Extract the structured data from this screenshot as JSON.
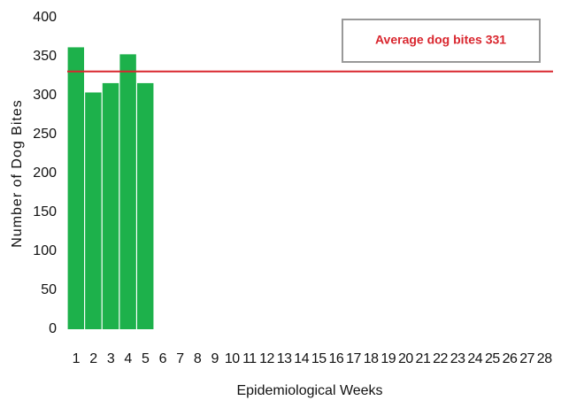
{
  "chart_data": {
    "type": "bar",
    "xlabel": "Epidemiological Weeks",
    "ylabel": "Number of Dog Bites",
    "categories": [
      "1",
      "2",
      "3",
      "4",
      "5",
      "6",
      "7",
      "8",
      "9",
      "10",
      "11",
      "12",
      "13",
      "14",
      "15",
      "16",
      "17",
      "18",
      "19",
      "20",
      "21",
      "22",
      "23",
      "24",
      "25",
      "26",
      "27",
      "28"
    ],
    "values": [
      362,
      304,
      316,
      353,
      316,
      null,
      null,
      null,
      null,
      null,
      null,
      null,
      null,
      null,
      null,
      null,
      null,
      null,
      null,
      null,
      null,
      null,
      null,
      null,
      null,
      null,
      null,
      null
    ],
    "color": "#1db14b",
    "ylim": [
      0,
      400
    ],
    "yticks": [
      0,
      50,
      100,
      150,
      200,
      250,
      300,
      350,
      400
    ],
    "reference_line": {
      "value": 331,
      "label": "Average dog bites 331",
      "color": "#d9262e"
    }
  }
}
